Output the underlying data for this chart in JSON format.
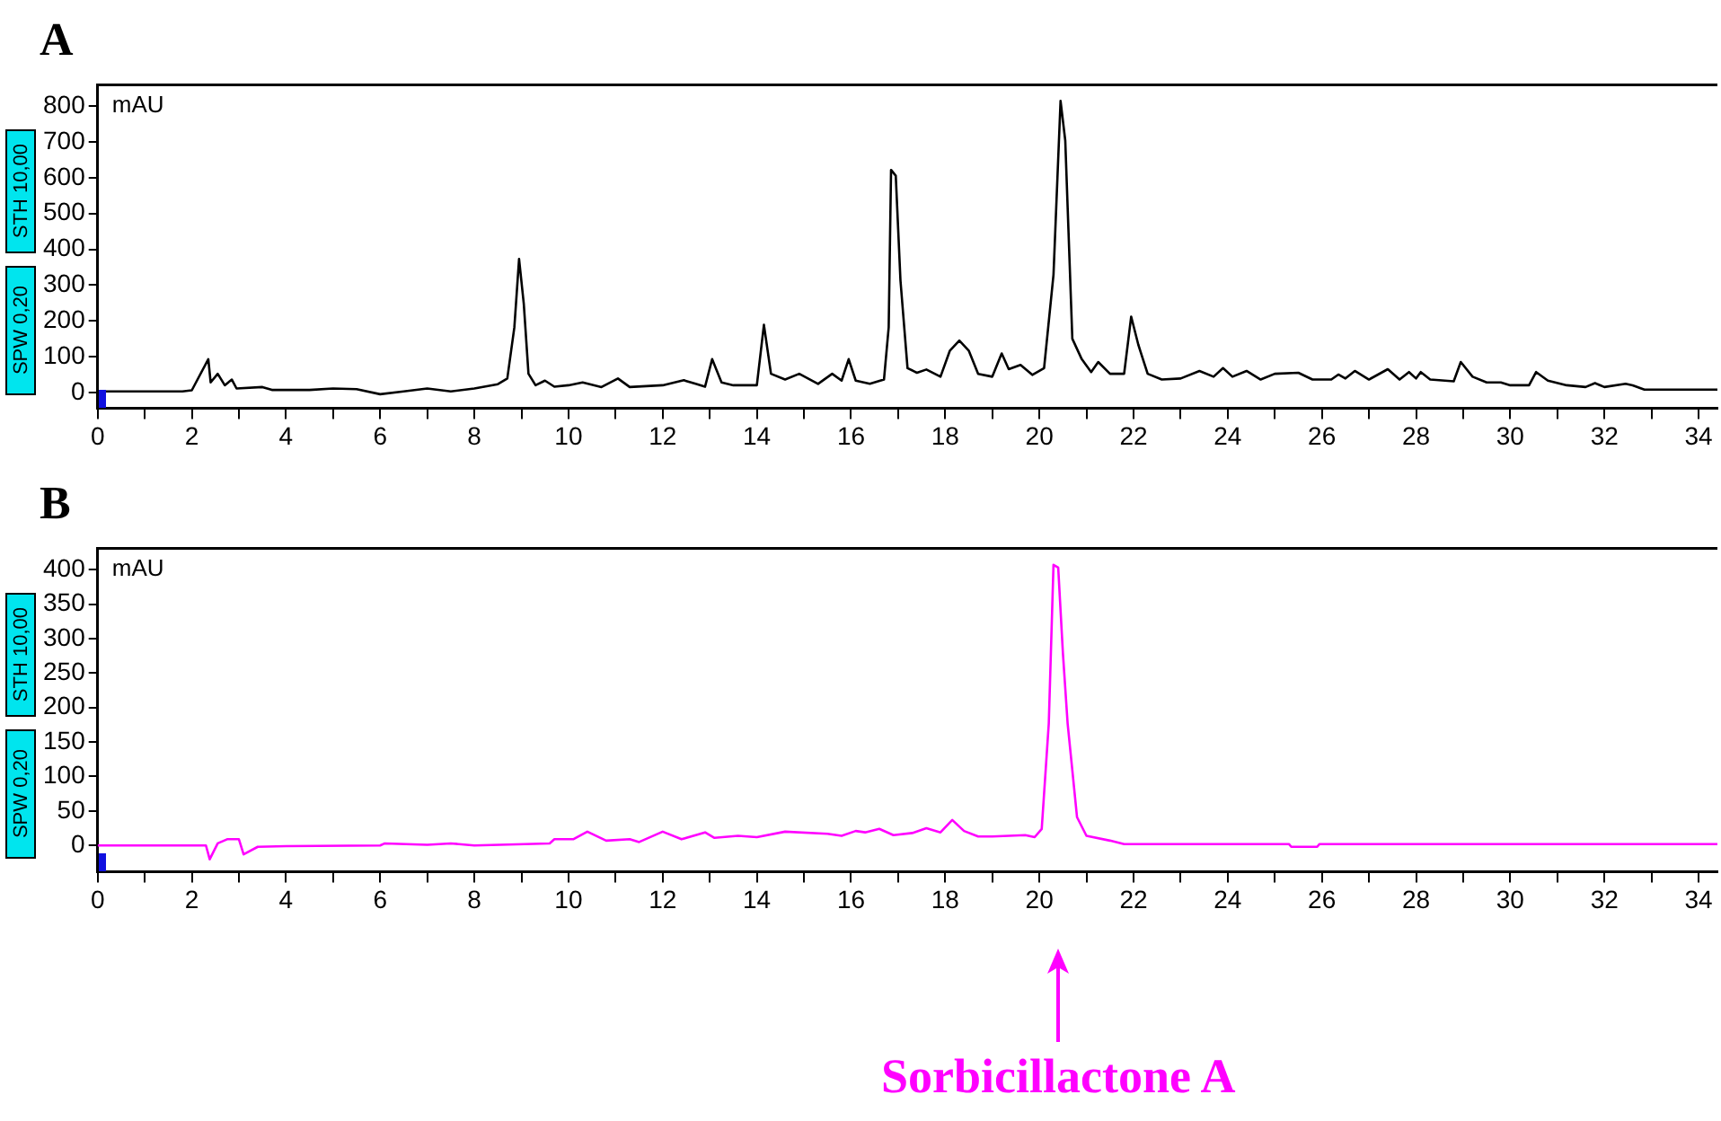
{
  "chart_data": [
    {
      "type": "line",
      "title": "A",
      "ylabel": "mAU",
      "annotations": [
        "STH 10,00",
        "SPW 0,20"
      ],
      "xlim": [
        0,
        34.4
      ],
      "xticks": [
        0,
        {
          "value": 1,
          "label": null
        },
        2,
        {
          "value": 3,
          "label": null
        },
        4,
        {
          "value": 5,
          "label": null
        },
        6,
        {
          "value": 7,
          "label": null
        },
        8,
        {
          "value": 9,
          "label": null
        },
        10,
        {
          "value": 11,
          "label": null
        },
        12,
        {
          "value": 13,
          "label": null
        },
        14,
        {
          "value": 15,
          "label": null
        },
        16,
        {
          "value": 17,
          "label": null
        },
        18,
        {
          "value": 19,
          "label": null
        },
        20,
        {
          "value": 21,
          "label": null
        },
        22,
        {
          "value": 23,
          "label": null
        },
        24,
        {
          "value": 25,
          "label": null
        },
        26,
        {
          "value": 27,
          "label": null
        },
        28,
        {
          "value": 29,
          "label": null
        },
        30,
        {
          "value": 31,
          "label": null
        },
        32,
        {
          "value": 33,
          "label": null
        },
        34
      ],
      "ylim": [
        -44,
        860
      ],
      "yticks": [
        0,
        100,
        200,
        300,
        400,
        500,
        600,
        700,
        800
      ],
      "series": [
        {
          "color": "#000000",
          "x": [
            0,
            1.8,
            2.0,
            2.35,
            2.4,
            2.55,
            2.7,
            2.85,
            2.95,
            3.5,
            3.7,
            4.5,
            5.0,
            5.5,
            6.0,
            6.5,
            7.0,
            7.5,
            8.0,
            8.5,
            8.7,
            8.85,
            8.95,
            9.05,
            9.15,
            9.3,
            9.5,
            9.7,
            10.0,
            10.3,
            10.7,
            11.05,
            11.3,
            12.0,
            12.45,
            12.7,
            12.9,
            13.05,
            13.25,
            13.5,
            14.0,
            14.15,
            14.3,
            14.6,
            14.9,
            15.3,
            15.6,
            15.8,
            15.95,
            16.1,
            16.4,
            16.7,
            16.8,
            16.85,
            16.95,
            17.05,
            17.2,
            17.4,
            17.6,
            17.9,
            18.1,
            18.3,
            18.5,
            18.7,
            19.0,
            19.2,
            19.35,
            19.6,
            19.85,
            20.1,
            20.3,
            20.45,
            20.55,
            20.7,
            20.9,
            21.1,
            21.25,
            21.5,
            21.8,
            21.95,
            22.1,
            22.3,
            22.6,
            23.0,
            23.4,
            23.7,
            23.9,
            24.1,
            24.4,
            24.7,
            25.0,
            25.5,
            25.8,
            26.2,
            26.35,
            26.5,
            26.7,
            27.0,
            27.4,
            27.65,
            27.85,
            28.0,
            28.1,
            28.3,
            28.8,
            28.95,
            29.2,
            29.5,
            29.8,
            30.0,
            30.4,
            30.55,
            30.8,
            31.2,
            31.6,
            31.8,
            32.0,
            32.45,
            32.6,
            32.85,
            34.4
          ],
          "values": [
            3,
            3,
            6,
            93,
            28,
            52,
            20,
            36,
            11,
            15,
            7,
            7,
            11,
            9,
            -5,
            3,
            11,
            3,
            11,
            23,
            39,
            182,
            373,
            248,
            52,
            20,
            33,
            16,
            20,
            28,
            15,
            39,
            15,
            20,
            34,
            24,
            16,
            93,
            28,
            20,
            20,
            189,
            52,
            36,
            52,
            24,
            52,
            33,
            93,
            33,
            24,
            36,
            182,
            622,
            606,
            313,
            68,
            55,
            64,
            44,
            117,
            145,
            117,
            52,
            44,
            109,
            65,
            77,
            49,
            68,
            329,
            815,
            704,
            150,
            93,
            57,
            85,
            52,
            52,
            212,
            134,
            52,
            36,
            39,
            60,
            44,
            68,
            44,
            60,
            36,
            52,
            55,
            36,
            36,
            50,
            39,
            60,
            36,
            65,
            36,
            57,
            39,
            57,
            36,
            31,
            85,
            44,
            28,
            28,
            20,
            20,
            57,
            33,
            20,
            15,
            26,
            15,
            24,
            20,
            8,
            8
          ]
        }
      ]
    },
    {
      "type": "line",
      "title": "B",
      "ylabel": "mAU",
      "annotations": [
        "STH 10,00",
        "SPW 0,20",
        "Sorbicillactone A"
      ],
      "xlim": [
        0,
        34.4
      ],
      "xticks": [
        0,
        {
          "value": 1,
          "label": null
        },
        2,
        {
          "value": 3,
          "label": null
        },
        4,
        {
          "value": 5,
          "label": null
        },
        6,
        {
          "value": 7,
          "label": null
        },
        8,
        {
          "value": 9,
          "label": null
        },
        10,
        {
          "value": 11,
          "label": null
        },
        12,
        {
          "value": 13,
          "label": null
        },
        14,
        {
          "value": 15,
          "label": null
        },
        16,
        {
          "value": 17,
          "label": null
        },
        18,
        {
          "value": 19,
          "label": null
        },
        20,
        {
          "value": 21,
          "label": null
        },
        22,
        {
          "value": 23,
          "label": null
        },
        24,
        {
          "value": 25,
          "label": null
        },
        26,
        {
          "value": 27,
          "label": null
        },
        28,
        {
          "value": 29,
          "label": null
        },
        30,
        {
          "value": 31,
          "label": null
        },
        32,
        {
          "value": 33,
          "label": null
        },
        34
      ],
      "ylim": [
        -38,
        431
      ],
      "yticks": [
        0,
        50,
        100,
        150,
        200,
        250,
        300,
        350,
        400
      ],
      "series": [
        {
          "color": "#ff00ff",
          "x": [
            0,
            2.3,
            2.38,
            2.55,
            2.75,
            3.0,
            3.1,
            3.4,
            4.0,
            6.0,
            6.1,
            7.0,
            7.5,
            8.0,
            9.6,
            9.7,
            10.1,
            10.4,
            10.8,
            11.3,
            11.5,
            12.0,
            12.4,
            12.9,
            13.1,
            13.6,
            14.0,
            14.6,
            15.5,
            15.8,
            16.1,
            16.3,
            16.6,
            16.9,
            17.3,
            17.6,
            17.9,
            18.15,
            18.4,
            18.7,
            19.0,
            19.7,
            19.9,
            20.05,
            20.2,
            20.3,
            20.4,
            20.5,
            20.6,
            20.8,
            21.0,
            21.5,
            21.8,
            25.3,
            25.35,
            25.9,
            25.95,
            34.4
          ],
          "values": [
            0,
            0,
            -20,
            3,
            9,
            9,
            -13,
            -2,
            -1,
            0,
            3,
            1,
            3,
            0,
            3,
            9,
            9,
            20,
            7,
            9,
            5,
            20,
            9,
            19,
            11,
            14,
            12,
            20,
            17,
            14,
            21,
            19,
            24,
            15,
            18,
            25,
            19,
            37,
            21,
            13,
            13,
            15,
            12,
            24,
            177,
            407,
            403,
            279,
            177,
            41,
            14,
            7,
            2,
            2,
            -2,
            -2,
            2,
            2
          ]
        }
      ]
    }
  ]
}
